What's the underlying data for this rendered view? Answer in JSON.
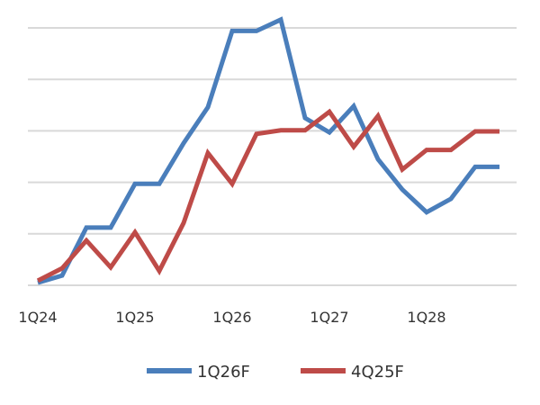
{
  "chart_data": {
    "type": "line",
    "x": [
      "1Q24",
      "2Q24",
      "3Q24",
      "4Q24",
      "1Q25",
      "2Q25",
      "3Q25",
      "4Q25",
      "1Q26",
      "2Q26",
      "3Q26",
      "4Q26",
      "1Q27",
      "2Q27",
      "3Q27",
      "4Q27",
      "1Q28",
      "2Q28",
      "3Q28",
      "4Q28"
    ],
    "x_tick_labels": [
      "1Q24",
      "1Q25",
      "1Q26",
      "1Q27",
      "1Q28"
    ],
    "y_gridlines": 6,
    "grid": true,
    "legend": "bottom",
    "series": [
      {
        "name": "1Q26F",
        "color": "#4a7ebb",
        "values": [
          0.05,
          0.19,
          1.12,
          1.12,
          1.97,
          1.97,
          2.76,
          3.46,
          4.94,
          4.94,
          5.16,
          3.25,
          2.97,
          3.48,
          2.45,
          1.86,
          1.42,
          1.68,
          2.3,
          2.3
        ]
      },
      {
        "name": "4Q25F",
        "color": "#be4b48",
        "values": [
          0.09,
          0.33,
          0.87,
          0.35,
          1.03,
          0.28,
          1.21,
          2.57,
          1.97,
          2.94,
          3.01,
          3.01,
          3.37,
          2.69,
          3.29,
          2.25,
          2.63,
          2.63,
          2.99,
          2.99
        ]
      }
    ]
  }
}
